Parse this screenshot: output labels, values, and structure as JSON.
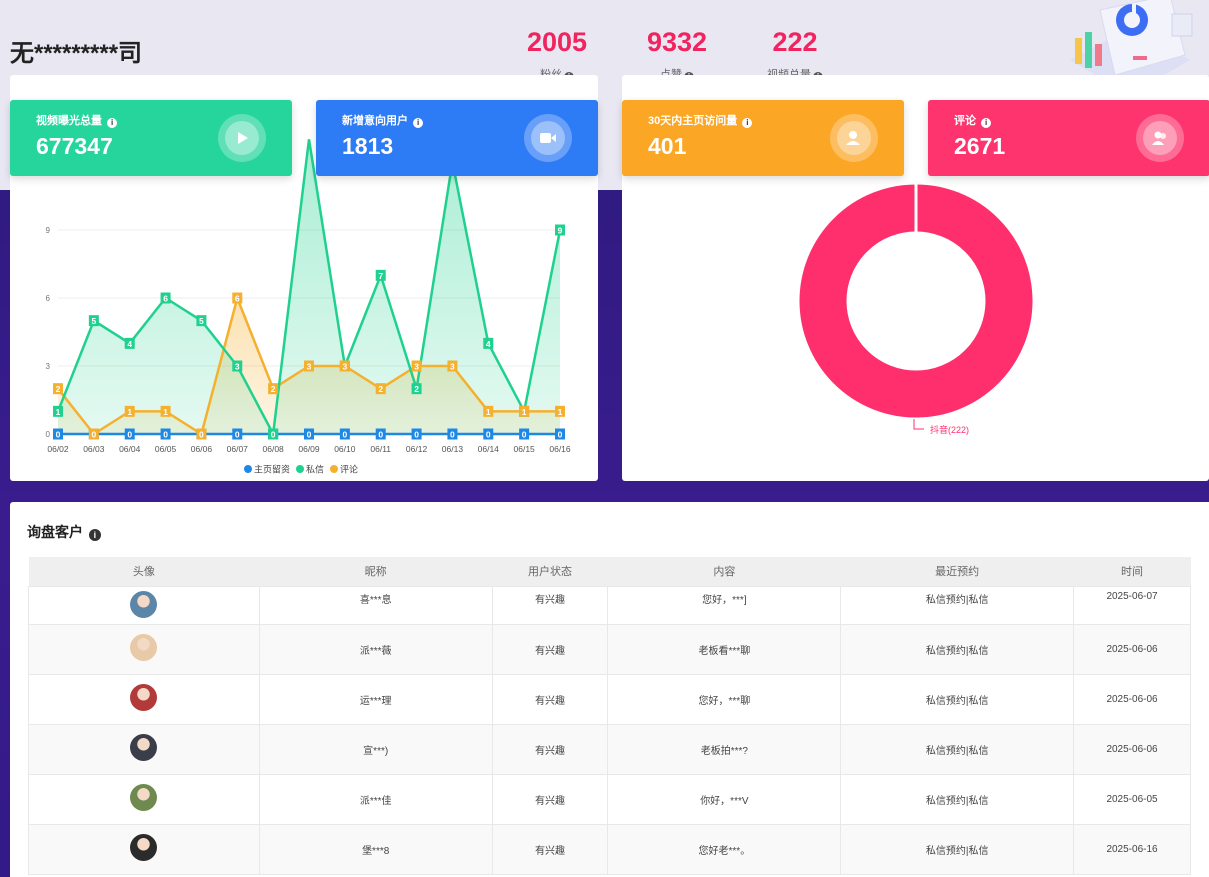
{
  "header": {
    "company": "无*********司",
    "stats": [
      {
        "value": "2005",
        "label": "粉丝"
      },
      {
        "value": "9332",
        "label": "点赞"
      },
      {
        "value": "222",
        "label": "视频总量"
      }
    ]
  },
  "cards": [
    {
      "title": "视频曝光总量",
      "value": "677347",
      "color": "#25d59c",
      "icon": "play-icon"
    },
    {
      "title": "新增意向用户",
      "value": "1813",
      "color": "#2e7bf6",
      "icon": "video-camera-icon"
    },
    {
      "title": "30天内主页访问量",
      "value": "401",
      "color": "#fba624",
      "icon": "user-icon"
    },
    {
      "title": "评论",
      "value": "2671",
      "color": "#fe346e",
      "icon": "users-icon"
    }
  ],
  "chart_data": [
    {
      "type": "area",
      "categories": [
        "06/02",
        "06/03",
        "06/04",
        "06/05",
        "06/06",
        "06/07",
        "06/08",
        "06/09",
        "06/10",
        "06/11",
        "06/12",
        "06/13",
        "06/14",
        "06/15",
        "06/16"
      ],
      "yticks": [
        "0",
        "3",
        "6",
        "9"
      ],
      "ylim": [
        0,
        12
      ],
      "series": [
        {
          "name": "主页留资",
          "color": "#1e88e5",
          "values": [
            0,
            0,
            0,
            0,
            0,
            0,
            0,
            0,
            0,
            0,
            0,
            0,
            0,
            0,
            0
          ]
        },
        {
          "name": "私信",
          "color": "#1fd18f",
          "values": [
            1,
            5,
            4,
            6,
            5,
            3,
            0,
            13,
            3,
            7,
            2,
            12,
            4,
            1,
            9
          ]
        },
        {
          "name": "评论",
          "color": "#f5b02e",
          "values": [
            2,
            0,
            1,
            1,
            0,
            6,
            2,
            3,
            3,
            2,
            3,
            3,
            1,
            1,
            1
          ]
        }
      ]
    },
    {
      "type": "pie",
      "slices": [
        {
          "label": "抖音(222)",
          "value": 222,
          "color": "#ff2f6e"
        }
      ]
    }
  ],
  "table": {
    "title": "询盘客户",
    "headers": [
      "头像",
      "昵称",
      "用户状态",
      "内容",
      "最近预约",
      "时间"
    ],
    "rows": [
      {
        "nick": "喜***息",
        "status": "有兴趣",
        "content": "您好，***]",
        "booking": "私信预约|私信",
        "time": "2025-06-07",
        "avatar": "#5b86a8"
      },
      {
        "nick": "派***薇",
        "status": "有兴趣",
        "content": "老板看***聊",
        "booking": "私信预约|私信",
        "time": "2025-06-06",
        "avatar": "#e8c9a8"
      },
      {
        "nick": "运***理",
        "status": "有兴趣",
        "content": "您好，***聊",
        "booking": "私信预约|私信",
        "time": "2025-06-06",
        "avatar": "#b23a3a"
      },
      {
        "nick": "宣***)",
        "status": "有兴趣",
        "content": "老板拍***?",
        "booking": "私信预约|私信",
        "time": "2025-06-06",
        "avatar": "#3a3d4a"
      },
      {
        "nick": "派***佳",
        "status": "有兴趣",
        "content": "你好，***V",
        "booking": "私信预约|私信",
        "time": "2025-06-05",
        "avatar": "#6e8a4e"
      },
      {
        "nick": "堡***8",
        "status": "有兴趣",
        "content": "您好老***。",
        "booking": "私信预约|私信",
        "time": "2025-06-16",
        "avatar": "#2b2b2b"
      }
    ]
  }
}
